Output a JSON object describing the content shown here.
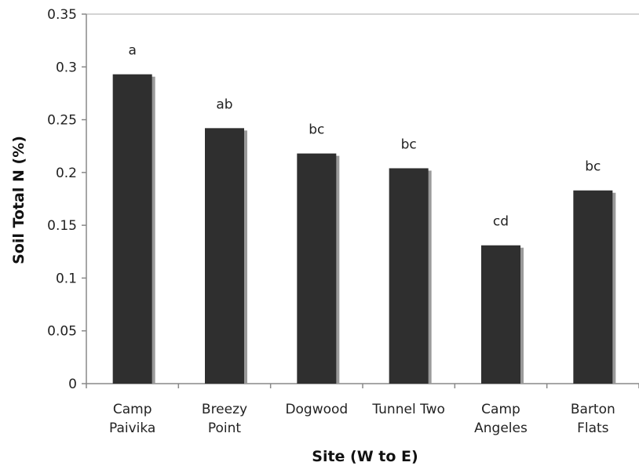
{
  "chart_data": {
    "type": "bar",
    "title": "",
    "xlabel": "Site (W to E)",
    "ylabel": "Soil Total N (%)",
    "ylim": [
      0,
      0.35
    ],
    "yticks": [
      "0",
      "0.05",
      "0.1",
      "0.15",
      "0.2",
      "0.25",
      "0.3",
      "0.35"
    ],
    "categories": [
      [
        "Camp",
        "Paivika"
      ],
      [
        "Breezy",
        "Point"
      ],
      [
        "Dogwood"
      ],
      [
        "Tunnel Two"
      ],
      [
        "Camp",
        "Angeles"
      ],
      [
        "Barton",
        "Flats"
      ]
    ],
    "values": [
      0.293,
      0.242,
      0.218,
      0.204,
      0.131,
      0.183
    ],
    "data_labels": [
      "a",
      "ab",
      "bc",
      "bc",
      "cd",
      "bc"
    ],
    "grid": false,
    "legend": "none",
    "colors": {
      "bar": "#2f2f2f",
      "shadow": "#9a9a9a",
      "axis": "#888888",
      "frame": "#aaaaaa"
    }
  }
}
